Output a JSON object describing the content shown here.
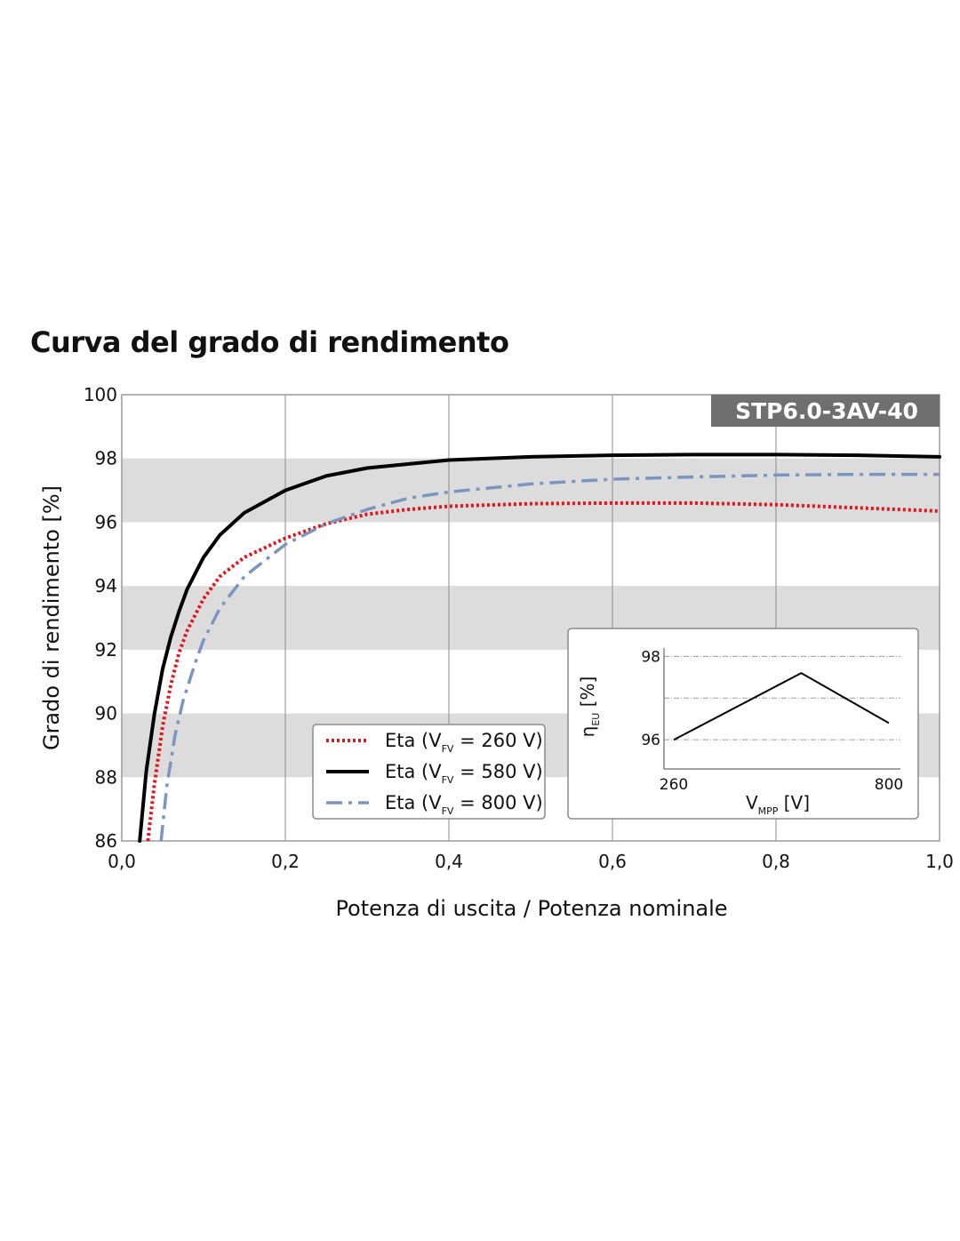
{
  "page": {
    "title": "Curva del grado di rendimento",
    "model_badge": "STP6.0-3AV-40"
  },
  "chart_data": [
    {
      "type": "line",
      "xlabel": "Potenza di uscita / Potenza nominale",
      "ylabel": "Grado di rendimento [%]",
      "xlim": [
        0.0,
        1.0
      ],
      "ylim": [
        86,
        100
      ],
      "x_ticks": [
        "0,0",
        "0,2",
        "0,4",
        "0,6",
        "0,8",
        "1,0"
      ],
      "y_ticks": [
        "86",
        "88",
        "90",
        "92",
        "94",
        "96",
        "98",
        "100"
      ],
      "grid": "vertical lines at x ticks; alternating grey bands 88–90, 92–94, 96–98",
      "legend": {
        "placement": "bottom-center",
        "items": [
          {
            "prefix": "Eta (V",
            "sub": "FV",
            "suffix": " = 260 V)"
          },
          {
            "prefix": "Eta (V",
            "sub": "FV",
            "suffix": " = 580 V)"
          },
          {
            "prefix": "Eta (V",
            "sub": "FV",
            "suffix": " = 800 V)"
          }
        ]
      },
      "series": [
        {
          "name": "Eta (VFV = 260 V)",
          "color": "#e3141b",
          "style": "dotted",
          "points": [
            [
              0.032,
              86.0
            ],
            [
              0.04,
              87.8
            ],
            [
              0.05,
              89.6
            ],
            [
              0.06,
              90.9
            ],
            [
              0.07,
              91.9
            ],
            [
              0.08,
              92.6
            ],
            [
              0.1,
              93.6
            ],
            [
              0.12,
              94.3
            ],
            [
              0.15,
              94.9
            ],
            [
              0.2,
              95.5
            ],
            [
              0.25,
              95.95
            ],
            [
              0.3,
              96.25
            ],
            [
              0.35,
              96.4
            ],
            [
              0.4,
              96.5
            ],
            [
              0.5,
              96.58
            ],
            [
              0.6,
              96.6
            ],
            [
              0.7,
              96.6
            ],
            [
              0.8,
              96.55
            ],
            [
              0.9,
              96.45
            ],
            [
              1.0,
              96.35
            ]
          ]
        },
        {
          "name": "Eta (VFV = 580 V)",
          "color": "#000000",
          "style": "solid",
          "points": [
            [
              0.022,
              86.0
            ],
            [
              0.03,
              88.2
            ],
            [
              0.04,
              90.0
            ],
            [
              0.05,
              91.4
            ],
            [
              0.06,
              92.4
            ],
            [
              0.07,
              93.2
            ],
            [
              0.08,
              93.9
            ],
            [
              0.1,
              94.9
            ],
            [
              0.12,
              95.6
            ],
            [
              0.15,
              96.3
            ],
            [
              0.2,
              97.0
            ],
            [
              0.25,
              97.45
            ],
            [
              0.3,
              97.7
            ],
            [
              0.4,
              97.95
            ],
            [
              0.5,
              98.05
            ],
            [
              0.6,
              98.1
            ],
            [
              0.7,
              98.12
            ],
            [
              0.8,
              98.12
            ],
            [
              0.9,
              98.1
            ],
            [
              1.0,
              98.05
            ]
          ]
        },
        {
          "name": "Eta (VFV = 800 V)",
          "color": "#7a96c0",
          "style": "dash-dot",
          "points": [
            [
              0.048,
              86.0
            ],
            [
              0.055,
              87.7
            ],
            [
              0.065,
              89.3
            ],
            [
              0.075,
              90.4
            ],
            [
              0.09,
              91.6
            ],
            [
              0.1,
              92.3
            ],
            [
              0.12,
              93.3
            ],
            [
              0.15,
              94.3
            ],
            [
              0.2,
              95.3
            ],
            [
              0.25,
              95.95
            ],
            [
              0.3,
              96.4
            ],
            [
              0.35,
              96.75
            ],
            [
              0.4,
              96.95
            ],
            [
              0.5,
              97.2
            ],
            [
              0.6,
              97.35
            ],
            [
              0.7,
              97.42
            ],
            [
              0.8,
              97.48
            ],
            [
              0.9,
              97.5
            ],
            [
              1.0,
              97.5
            ]
          ]
        }
      ]
    },
    {
      "type": "line",
      "placement": "inset lower-right",
      "xlabel": {
        "prefix": "V",
        "sub": "MPP",
        "suffix": " [V]"
      },
      "ylabel": {
        "prefix": "η",
        "sub": "EU",
        "suffix": " [%]"
      },
      "xlim": [
        260,
        800
      ],
      "ylim": [
        95.3,
        98.2
      ],
      "x_ticks": [
        "260",
        "800"
      ],
      "y_ticks": [
        "96",
        "98"
      ],
      "grid": "horizontal dash-dot lines at 96, 97, 98",
      "series": [
        {
          "color": "#000000",
          "x": [
            260,
            580,
            800
          ],
          "y": [
            96.0,
            97.6,
            96.4
          ]
        }
      ]
    }
  ]
}
